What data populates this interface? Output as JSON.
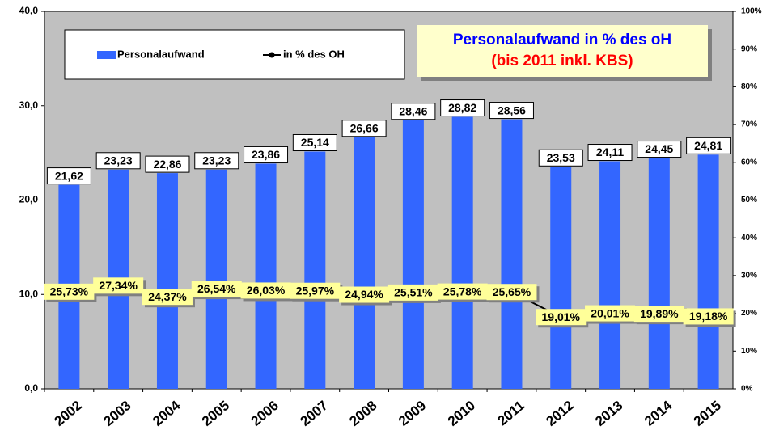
{
  "chart_data": {
    "type": "bar_line",
    "title": "Personalaufwand in % des oH",
    "subtitle": "(bis 2011 inkl. KBS)",
    "categories": [
      "2002",
      "2003",
      "2004",
      "2005",
      "2006",
      "2007",
      "2008",
      "2009",
      "2010",
      "2011",
      "2012",
      "2013",
      "2014",
      "2015"
    ],
    "series": [
      {
        "name": "Personalaufwand",
        "color": "#3366ff",
        "type": "bar",
        "values": [
          21.62,
          23.23,
          22.86,
          23.23,
          23.86,
          25.14,
          26.66,
          28.46,
          28.82,
          28.56,
          23.53,
          24.11,
          24.45,
          24.81
        ],
        "value_labels": [
          "21,62",
          "23,23",
          "22,86",
          "23,23",
          "23,86",
          "25,14",
          "26,66",
          "28,46",
          "28,82",
          "28,56",
          "23,53",
          "24,11",
          "24,45",
          "24,81"
        ]
      },
      {
        "name": "in % des OH",
        "color": "#000000",
        "type": "line",
        "axis": "y2",
        "values": [
          25.73,
          27.34,
          24.37,
          26.54,
          26.03,
          25.97,
          24.94,
          25.51,
          25.78,
          25.65,
          19.01,
          20.01,
          19.89,
          19.18
        ],
        "value_labels": [
          "25,73%",
          "27,34%",
          "24,37%",
          "26,54%",
          "26,03%",
          "25,97%",
          "24,94%",
          "25,51%",
          "25,78%",
          "25,65%",
          "19,01%",
          "20,01%",
          "19,89%",
          "19,18%"
        ]
      }
    ],
    "ylim": [
      0,
      40
    ],
    "yticks": [
      {
        "value": 0,
        "label": "0,0"
      },
      {
        "value": 10,
        "label": "10,0"
      },
      {
        "value": 20,
        "label": "20,0"
      },
      {
        "value": 30,
        "label": "30,0"
      },
      {
        "value": 40,
        "label": "40,0"
      }
    ],
    "y2lim": [
      0,
      100
    ],
    "y2ticks": [
      {
        "value": 0,
        "label": "0%"
      },
      {
        "value": 10,
        "label": "10%"
      },
      {
        "value": 20,
        "label": "20%"
      },
      {
        "value": 30,
        "label": "30%"
      },
      {
        "value": 40,
        "label": "40%"
      },
      {
        "value": 50,
        "label": "50%"
      },
      {
        "value": 60,
        "label": "60%"
      },
      {
        "value": 70,
        "label": "70%"
      },
      {
        "value": 80,
        "label": "80%"
      },
      {
        "value": 90,
        "label": "90%"
      },
      {
        "value": 100,
        "label": "100%"
      }
    ],
    "grid": false
  }
}
